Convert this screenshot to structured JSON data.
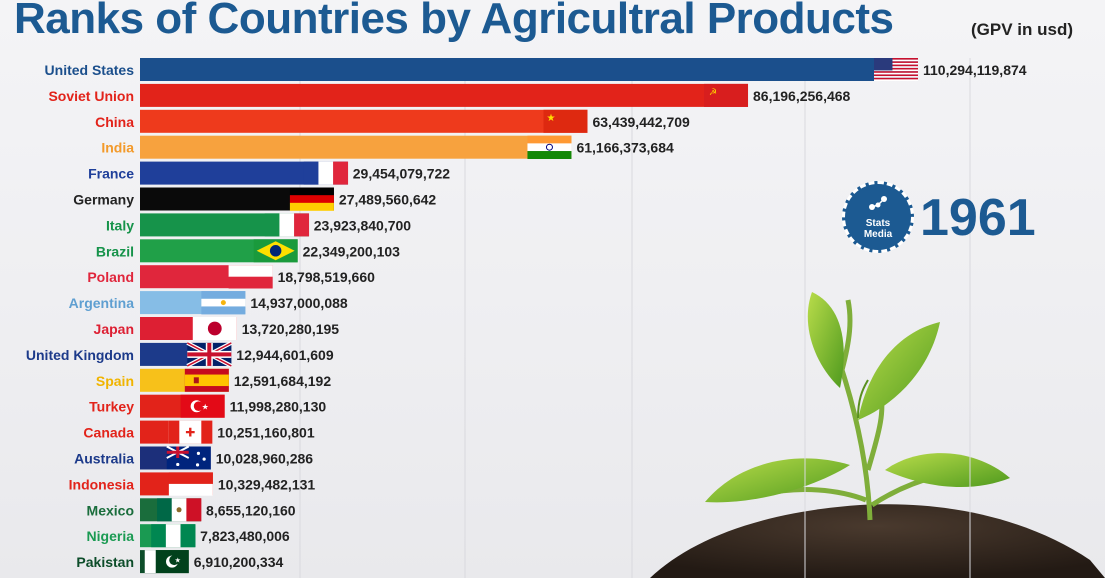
{
  "header": {
    "title": "Ranks of Countries by Agricultral Products",
    "unit": "(GPV in usd)"
  },
  "overlay": {
    "year": "1961",
    "badge_line1": "Stats",
    "badge_line2": "Media"
  },
  "colors": {
    "accent": "#1c5a92"
  },
  "chart_data": {
    "type": "bar",
    "orientation": "horizontal",
    "title": "Ranks of Countries by Agricultral Products",
    "unit_label": "(GPV in usd)",
    "xlim": [
      0,
      110294119874
    ],
    "grid": true,
    "bars": [
      {
        "country": "United States",
        "value": 110294119874,
        "value_label": "110,294,119,874",
        "color": "#1b4f8c",
        "label_color": "#1b4f8c",
        "flag": "us-flag"
      },
      {
        "country": "Soviet Union",
        "value": 86196256468,
        "value_label": "86,196,256,468",
        "color": "#e2231a",
        "label_color": "#e2231a",
        "flag": "ussr-flag"
      },
      {
        "country": "China",
        "value": 63439442709,
        "value_label": "63,439,442,709",
        "color": "#ee3a1c",
        "label_color": "#e2231a",
        "flag": "china-flag"
      },
      {
        "country": "India",
        "value": 61166373684,
        "value_label": "61,166,373,684",
        "color": "#f7a23e",
        "label_color": "#f39a2a",
        "flag": "india-flag"
      },
      {
        "country": "France",
        "value": 29454079722,
        "value_label": "29,454,079,722",
        "color": "#1f3f9a",
        "label_color": "#1f3f9a",
        "flag": "france-flag"
      },
      {
        "country": "Germany",
        "value": 27489560642,
        "value_label": "27,489,560,642",
        "color": "#0a0a0a",
        "label_color": "#222222",
        "flag": "germany-flag"
      },
      {
        "country": "Italy",
        "value": 23923840700,
        "value_label": "23,923,840,700",
        "color": "#16934a",
        "label_color": "#16934a",
        "flag": "italy-flag"
      },
      {
        "country": "Brazil",
        "value": 22349200103,
        "value_label": "22,349,200,103",
        "color": "#20a048",
        "label_color": "#16934a",
        "flag": "brazil-flag"
      },
      {
        "country": "Poland",
        "value": 18798519660,
        "value_label": "18,798,519,660",
        "color": "#e0263c",
        "label_color": "#e0263c",
        "flag": "poland-flag"
      },
      {
        "country": "Argentina",
        "value": 14937000088,
        "value_label": "14,937,000,088",
        "color": "#86bde6",
        "label_color": "#5f9fd1",
        "flag": "argentina-flag"
      },
      {
        "country": "Japan",
        "value": 13720280195,
        "value_label": "13,720,280,195",
        "color": "#dd1f33",
        "label_color": "#dd1f33",
        "flag": "japan-flag"
      },
      {
        "country": "United Kingdom",
        "value": 12944601609,
        "value_label": "12,944,601,609",
        "color": "#1c3a8a",
        "label_color": "#1c3a8a",
        "flag": "uk-flag"
      },
      {
        "country": "Spain",
        "value": 12591684192,
        "value_label": "12,591,684,192",
        "color": "#f7c11a",
        "label_color": "#f0b400",
        "flag": "spain-flag"
      },
      {
        "country": "Turkey",
        "value": 11998280130,
        "value_label": "11,998,280,130",
        "color": "#e2231a",
        "label_color": "#e2231a",
        "flag": "turkey-flag"
      },
      {
        "country": "Canada",
        "value": 10251160801,
        "value_label": "10,251,160,801",
        "color": "#e2231a",
        "label_color": "#e2231a",
        "flag": "canada-flag"
      },
      {
        "country": "Australia",
        "value": 10028960286,
        "value_label": "10,028,960,286",
        "color": "#1c2f7a",
        "label_color": "#1c3a8a",
        "flag": "australia-flag"
      },
      {
        "country": "Indonesia",
        "value": 10329482131,
        "value_label": "10,329,482,131",
        "color": "#e2231a",
        "label_color": "#e2231a",
        "flag": "indonesia-flag"
      },
      {
        "country": "Mexico",
        "value": 8655120160,
        "value_label": "8,655,120,160",
        "color": "#1a6d3c",
        "label_color": "#1a6d3c",
        "flag": "mexico-flag"
      },
      {
        "country": "Nigeria",
        "value": 7823480006,
        "value_label": "7,823,480,006",
        "color": "#1a9a52",
        "label_color": "#1a9a52",
        "flag": "nigeria-flag"
      },
      {
        "country": "Pakistan",
        "value": 6910200334,
        "value_label": "6,910,200,334",
        "color": "#0d4d2a",
        "label_color": "#0d4d2a",
        "flag": "pakistan-flag"
      }
    ]
  }
}
